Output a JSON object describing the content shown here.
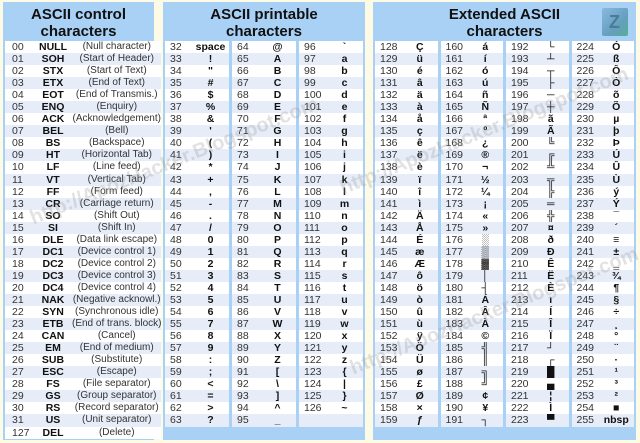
{
  "control": {
    "title": "ASCII control characters",
    "rows": [
      [
        "00",
        "NULL",
        "(Null character)"
      ],
      [
        "01",
        "SOH",
        "(Start of Header)"
      ],
      [
        "02",
        "STX",
        "(Start of Text)"
      ],
      [
        "03",
        "ETX",
        "(End of Text)"
      ],
      [
        "04",
        "EOT",
        "(End of Transmis.)"
      ],
      [
        "05",
        "ENQ",
        "(Enquiry)"
      ],
      [
        "06",
        "ACK",
        "(Acknowledgement)"
      ],
      [
        "07",
        "BEL",
        "(Bell)"
      ],
      [
        "08",
        "BS",
        "(Backspace)"
      ],
      [
        "09",
        "HT",
        "(Horizontal Tab)"
      ],
      [
        "10",
        "LF",
        "(Line feed)"
      ],
      [
        "11",
        "VT",
        "(Vertical Tab)"
      ],
      [
        "12",
        "FF",
        "(Form feed)"
      ],
      [
        "13",
        "CR",
        "(Carriage return)"
      ],
      [
        "14",
        "SO",
        "(Shift Out)"
      ],
      [
        "15",
        "SI",
        "(Shift In)"
      ],
      [
        "16",
        "DLE",
        "(Data link escape)"
      ],
      [
        "17",
        "DC1",
        "(Device control 1)"
      ],
      [
        "18",
        "DC2",
        "(Device control 2)"
      ],
      [
        "19",
        "DC3",
        "(Device control 3)"
      ],
      [
        "20",
        "DC4",
        "(Device control 4)"
      ],
      [
        "21",
        "NAK",
        "(Negative acknowl.)"
      ],
      [
        "22",
        "SYN",
        "(Synchronous idle)"
      ],
      [
        "23",
        "ETB",
        "(End of trans. block)"
      ],
      [
        "24",
        "CAN",
        "(Cancel)"
      ],
      [
        "25",
        "EM",
        "(End of medium)"
      ],
      [
        "26",
        "SUB",
        "(Substitute)"
      ],
      [
        "27",
        "ESC",
        "(Escape)"
      ],
      [
        "28",
        "FS",
        "(File separator)"
      ],
      [
        "29",
        "GS",
        "(Group separator)"
      ],
      [
        "30",
        "RS",
        "(Record separator)"
      ],
      [
        "31",
        "US",
        "(Unit separator)"
      ],
      [
        "127",
        "DEL",
        "(Delete)"
      ]
    ]
  },
  "printable": {
    "title": "ASCII printable characters",
    "columns": [
      [
        [
          "32",
          "space"
        ],
        [
          "33",
          "!"
        ],
        [
          "34",
          "\""
        ],
        [
          "35",
          "#"
        ],
        [
          "36",
          "$"
        ],
        [
          "37",
          "%"
        ],
        [
          "38",
          "&"
        ],
        [
          "39",
          "'"
        ],
        [
          "40",
          "("
        ],
        [
          "41",
          ")"
        ],
        [
          "42",
          "*"
        ],
        [
          "43",
          "+"
        ],
        [
          "44",
          ","
        ],
        [
          "45",
          "-"
        ],
        [
          "46",
          "."
        ],
        [
          "47",
          "/"
        ],
        [
          "48",
          "0"
        ],
        [
          "49",
          "1"
        ],
        [
          "50",
          "2"
        ],
        [
          "51",
          "3"
        ],
        [
          "52",
          "4"
        ],
        [
          "53",
          "5"
        ],
        [
          "54",
          "6"
        ],
        [
          "55",
          "7"
        ],
        [
          "56",
          "8"
        ],
        [
          "57",
          "9"
        ],
        [
          "58",
          ":"
        ],
        [
          "59",
          ";"
        ],
        [
          "60",
          "<"
        ],
        [
          "61",
          "="
        ],
        [
          "62",
          ">"
        ],
        [
          "63",
          "?"
        ]
      ],
      [
        [
          "64",
          "@"
        ],
        [
          "65",
          "A"
        ],
        [
          "66",
          "B"
        ],
        [
          "67",
          "C"
        ],
        [
          "68",
          "D"
        ],
        [
          "69",
          "E"
        ],
        [
          "70",
          "F"
        ],
        [
          "71",
          "G"
        ],
        [
          "72",
          "H"
        ],
        [
          "73",
          "I"
        ],
        [
          "74",
          "J"
        ],
        [
          "75",
          "K"
        ],
        [
          "76",
          "L"
        ],
        [
          "77",
          "M"
        ],
        [
          "78",
          "N"
        ],
        [
          "79",
          "O"
        ],
        [
          "80",
          "P"
        ],
        [
          "81",
          "Q"
        ],
        [
          "82",
          "R"
        ],
        [
          "83",
          "S"
        ],
        [
          "84",
          "T"
        ],
        [
          "85",
          "U"
        ],
        [
          "86",
          "V"
        ],
        [
          "87",
          "W"
        ],
        [
          "88",
          "X"
        ],
        [
          "89",
          "Y"
        ],
        [
          "90",
          "Z"
        ],
        [
          "91",
          "["
        ],
        [
          "92",
          "\\"
        ],
        [
          "93",
          "]"
        ],
        [
          "94",
          "^"
        ],
        [
          "95",
          "_"
        ]
      ],
      [
        [
          "96",
          "`"
        ],
        [
          "97",
          "a"
        ],
        [
          "98",
          "b"
        ],
        [
          "99",
          "c"
        ],
        [
          "100",
          "d"
        ],
        [
          "101",
          "e"
        ],
        [
          "102",
          "f"
        ],
        [
          "103",
          "g"
        ],
        [
          "104",
          "h"
        ],
        [
          "105",
          "i"
        ],
        [
          "106",
          "j"
        ],
        [
          "107",
          "k"
        ],
        [
          "108",
          "l"
        ],
        [
          "109",
          "m"
        ],
        [
          "110",
          "n"
        ],
        [
          "111",
          "o"
        ],
        [
          "112",
          "p"
        ],
        [
          "113",
          "q"
        ],
        [
          "114",
          "r"
        ],
        [
          "115",
          "s"
        ],
        [
          "116",
          "t"
        ],
        [
          "117",
          "u"
        ],
        [
          "118",
          "v"
        ],
        [
          "119",
          "w"
        ],
        [
          "120",
          "x"
        ],
        [
          "121",
          "y"
        ],
        [
          "122",
          "z"
        ],
        [
          "123",
          "{"
        ],
        [
          "124",
          "|"
        ],
        [
          "125",
          "}"
        ],
        [
          "126",
          "~"
        ],
        [
          "",
          ""
        ]
      ]
    ]
  },
  "extended": {
    "title": "Extended ASCII characters",
    "columns": [
      [
        [
          "128",
          "Ç"
        ],
        [
          "129",
          "ü"
        ],
        [
          "130",
          "é"
        ],
        [
          "131",
          "â"
        ],
        [
          "132",
          "ä"
        ],
        [
          "133",
          "à"
        ],
        [
          "134",
          "å"
        ],
        [
          "135",
          "ç"
        ],
        [
          "136",
          "ê"
        ],
        [
          "137",
          "ë"
        ],
        [
          "138",
          "è"
        ],
        [
          "139",
          "ï"
        ],
        [
          "140",
          "î"
        ],
        [
          "141",
          "ì"
        ],
        [
          "142",
          "Ä"
        ],
        [
          "143",
          "Å"
        ],
        [
          "144",
          "É"
        ],
        [
          "145",
          "æ"
        ],
        [
          "146",
          "Æ"
        ],
        [
          "147",
          "ô"
        ],
        [
          "148",
          "ö"
        ],
        [
          "149",
          "ò"
        ],
        [
          "150",
          "û"
        ],
        [
          "151",
          "ù"
        ],
        [
          "152",
          "ÿ"
        ],
        [
          "153",
          "Ö"
        ],
        [
          "154",
          "Ü"
        ],
        [
          "155",
          "ø"
        ],
        [
          "156",
          "£"
        ],
        [
          "157",
          "Ø"
        ],
        [
          "158",
          "×"
        ],
        [
          "159",
          "ƒ"
        ]
      ],
      [
        [
          "160",
          "á"
        ],
        [
          "161",
          "í"
        ],
        [
          "162",
          "ó"
        ],
        [
          "163",
          "ú"
        ],
        [
          "164",
          "ñ"
        ],
        [
          "165",
          "Ñ"
        ],
        [
          "166",
          "ª"
        ],
        [
          "167",
          "º"
        ],
        [
          "168",
          "¿"
        ],
        [
          "169",
          "®"
        ],
        [
          "170",
          "¬"
        ],
        [
          "171",
          "½"
        ],
        [
          "172",
          "¼"
        ],
        [
          "173",
          "¡"
        ],
        [
          "174",
          "«"
        ],
        [
          "175",
          "»"
        ],
        [
          "176",
          "░"
        ],
        [
          "177",
          "▒"
        ],
        [
          "178",
          "▓"
        ],
        [
          "179",
          "│"
        ],
        [
          "180",
          "┤"
        ],
        [
          "181",
          "Á"
        ],
        [
          "182",
          "Â"
        ],
        [
          "183",
          "À"
        ],
        [
          "184",
          "©"
        ],
        [
          "185",
          "╣"
        ],
        [
          "186",
          "║"
        ],
        [
          "187",
          "╗"
        ],
        [
          "188",
          "╝"
        ],
        [
          "189",
          "¢"
        ],
        [
          "190",
          "¥"
        ],
        [
          "191",
          "┐"
        ]
      ],
      [
        [
          "192",
          "└"
        ],
        [
          "193",
          "┴"
        ],
        [
          "194",
          "┬"
        ],
        [
          "195",
          "├"
        ],
        [
          "196",
          "─"
        ],
        [
          "197",
          "┼"
        ],
        [
          "198",
          "ã"
        ],
        [
          "199",
          "Ã"
        ],
        [
          "200",
          "╚"
        ],
        [
          "201",
          "╔"
        ],
        [
          "202",
          "╩"
        ],
        [
          "203",
          "╦"
        ],
        [
          "204",
          "╠"
        ],
        [
          "205",
          "═"
        ],
        [
          "206",
          "╬"
        ],
        [
          "207",
          "¤"
        ],
        [
          "208",
          "ð"
        ],
        [
          "209",
          "Ð"
        ],
        [
          "210",
          "Ê"
        ],
        [
          "211",
          "Ë"
        ],
        [
          "212",
          "È"
        ],
        [
          "213",
          "ı"
        ],
        [
          "214",
          "Í"
        ],
        [
          "215",
          "Î"
        ],
        [
          "216",
          "Ï"
        ],
        [
          "217",
          "┘"
        ],
        [
          "218",
          "┌"
        ],
        [
          "219",
          "█"
        ],
        [
          "220",
          "▄"
        ],
        [
          "221",
          "¦"
        ],
        [
          "222",
          "Ì"
        ],
        [
          "223",
          "▀"
        ]
      ],
      [
        [
          "224",
          "Ó"
        ],
        [
          "225",
          "ß"
        ],
        [
          "226",
          "Ô"
        ],
        [
          "227",
          "Ò"
        ],
        [
          "228",
          "õ"
        ],
        [
          "229",
          "Õ"
        ],
        [
          "230",
          "µ"
        ],
        [
          "231",
          "þ"
        ],
        [
          "232",
          "Þ"
        ],
        [
          "233",
          "Ú"
        ],
        [
          "234",
          "Û"
        ],
        [
          "235",
          "Ù"
        ],
        [
          "236",
          "ý"
        ],
        [
          "237",
          "Ý"
        ],
        [
          "238",
          "¯"
        ],
        [
          "239",
          "´"
        ],
        [
          "240",
          "≡"
        ],
        [
          "241",
          "±"
        ],
        [
          "242",
          "‗"
        ],
        [
          "243",
          "¾"
        ],
        [
          "244",
          "¶"
        ],
        [
          "245",
          "§"
        ],
        [
          "246",
          "÷"
        ],
        [
          "247",
          "¸"
        ],
        [
          "248",
          "°"
        ],
        [
          "249",
          "¨"
        ],
        [
          "250",
          "·"
        ],
        [
          "251",
          "¹"
        ],
        [
          "252",
          "³"
        ],
        [
          "253",
          "²"
        ],
        [
          "254",
          "■"
        ],
        [
          "255",
          "nbsp"
        ]
      ]
    ]
  },
  "watermark": "http://ApozHacker.Blogspot.com",
  "colors": {
    "panel_blue": "#a9d0f5",
    "row_alt": "#e6edf8",
    "background": "#fdfbe6"
  }
}
